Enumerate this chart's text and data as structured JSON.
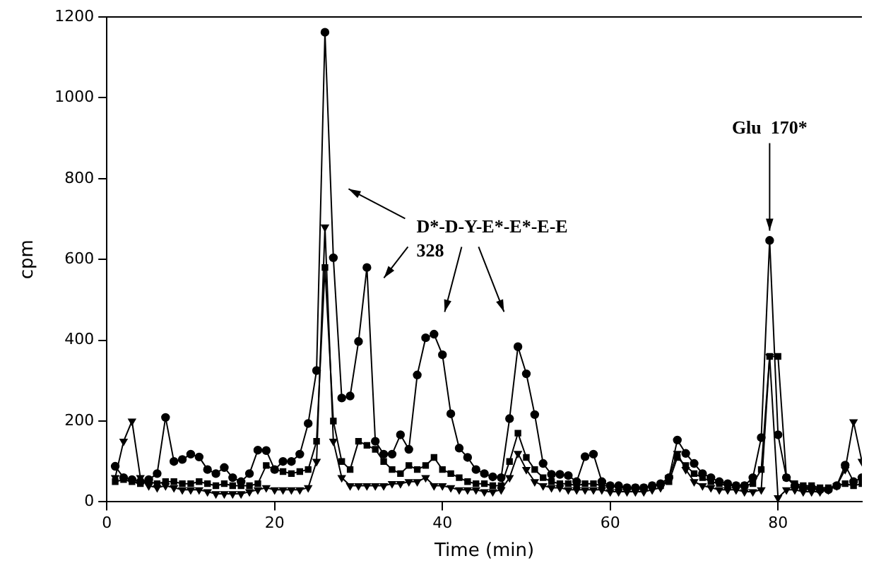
{
  "chart_data": {
    "type": "line",
    "xlabel": "Time (min)",
    "ylabel": "cpm",
    "xlim": [
      0,
      90
    ],
    "xticks": [
      0,
      20,
      40,
      60,
      80
    ],
    "ylim": [
      0,
      1200
    ],
    "yticks": [
      0,
      200,
      400,
      600,
      800,
      1000,
      1200
    ],
    "grid": false,
    "legend": false,
    "annotations": [
      "D*-D-Y-E*-E*-E-E\n328",
      {
        "text": "Glu  170*",
        "x": 79,
        "y": 650
      }
    ],
    "series": [
      {
        "color": "#000000",
        "marker": "circle",
        "x": [
          1,
          2,
          3,
          4,
          5,
          6,
          7,
          8,
          9,
          10,
          11,
          12,
          13,
          14,
          15,
          16,
          17,
          18,
          19,
          20,
          21,
          22,
          23,
          24,
          25,
          26,
          27,
          28,
          29,
          30,
          31,
          32,
          33,
          34,
          35,
          36,
          37,
          38,
          39,
          40,
          41,
          42,
          43,
          44,
          45,
          46,
          47,
          48,
          49,
          50,
          51,
          52,
          53,
          54,
          55,
          56,
          57,
          58,
          59,
          60,
          61,
          62,
          63,
          64,
          65,
          66,
          67,
          68,
          69,
          70,
          71,
          72,
          73,
          74,
          75,
          76,
          77,
          78,
          79,
          80,
          81,
          82,
          83,
          84,
          85,
          86,
          87,
          88,
          89,
          90
        ],
        "values": [
          88,
          60,
          55,
          50,
          55,
          70,
          209,
          100,
          105,
          118,
          111,
          80,
          70,
          85,
          60,
          50,
          70,
          128,
          127,
          80,
          100,
          100,
          118,
          194,
          325,
          1162,
          604,
          257,
          262,
          397,
          580,
          150,
          118,
          118,
          166,
          130,
          314,
          406,
          415,
          364,
          218,
          133,
          110,
          80,
          70,
          62,
          60,
          206,
          384,
          317,
          216,
          95,
          68,
          68,
          65,
          50,
          112,
          118,
          50,
          40,
          40,
          35,
          35,
          35,
          40,
          45,
          60,
          153,
          120,
          95,
          70,
          60,
          50,
          45,
          40,
          40,
          60,
          159,
          647,
          166,
          60,
          40,
          35,
          35,
          30,
          30,
          40,
          91,
          50,
          60
        ]
      },
      {
        "color": "#000000",
        "marker": "square",
        "x": [
          1,
          2,
          3,
          4,
          5,
          6,
          7,
          8,
          9,
          10,
          11,
          12,
          13,
          14,
          15,
          16,
          17,
          18,
          19,
          20,
          21,
          22,
          23,
          24,
          25,
          26,
          27,
          28,
          29,
          30,
          31,
          32,
          33,
          34,
          35,
          36,
          37,
          38,
          39,
          40,
          41,
          42,
          43,
          44,
          45,
          46,
          47,
          48,
          49,
          50,
          51,
          52,
          53,
          54,
          55,
          56,
          57,
          58,
          59,
          60,
          61,
          62,
          63,
          64,
          65,
          66,
          67,
          68,
          69,
          70,
          71,
          72,
          73,
          74,
          75,
          76,
          77,
          78,
          79,
          80,
          81,
          82,
          83,
          84,
          85,
          86,
          87,
          88,
          89,
          90
        ],
        "values": [
          50,
          55,
          50,
          45,
          50,
          45,
          50,
          50,
          45,
          45,
          50,
          45,
          40,
          45,
          40,
          40,
          40,
          45,
          90,
          80,
          75,
          70,
          75,
          80,
          150,
          580,
          200,
          100,
          80,
          150,
          140,
          130,
          100,
          80,
          70,
          90,
          80,
          90,
          110,
          80,
          70,
          60,
          50,
          45,
          45,
          40,
          40,
          100,
          170,
          110,
          80,
          60,
          50,
          45,
          45,
          40,
          45,
          45,
          40,
          40,
          35,
          35,
          35,
          35,
          40,
          40,
          50,
          110,
          90,
          70,
          60,
          50,
          45,
          40,
          40,
          40,
          45,
          80,
          360,
          360,
          60,
          45,
          40,
          40,
          35,
          35,
          40,
          45,
          40,
          45
        ]
      },
      {
        "color": "#000000",
        "marker": "triangle",
        "x": [
          1,
          2,
          3,
          4,
          5,
          6,
          7,
          8,
          9,
          10,
          11,
          12,
          13,
          14,
          15,
          16,
          17,
          18,
          19,
          20,
          21,
          22,
          23,
          24,
          25,
          26,
          27,
          28,
          29,
          30,
          31,
          32,
          33,
          34,
          35,
          36,
          37,
          38,
          39,
          40,
          41,
          42,
          43,
          44,
          45,
          46,
          47,
          48,
          49,
          50,
          51,
          52,
          53,
          54,
          55,
          56,
          57,
          58,
          59,
          60,
          61,
          62,
          63,
          64,
          65,
          66,
          67,
          68,
          69,
          70,
          71,
          72,
          73,
          74,
          75,
          76,
          77,
          78,
          79,
          80,
          81,
          82,
          83,
          84,
          85,
          86,
          87,
          88,
          89,
          90
        ],
        "values": [
          60,
          150,
          200,
          60,
          40,
          35,
          40,
          35,
          30,
          30,
          30,
          25,
          20,
          20,
          20,
          20,
          25,
          30,
          35,
          30,
          30,
          30,
          30,
          35,
          100,
          680,
          150,
          60,
          40,
          40,
          40,
          40,
          40,
          45,
          45,
          50,
          50,
          60,
          40,
          40,
          35,
          30,
          30,
          30,
          25,
          25,
          30,
          60,
          120,
          80,
          50,
          40,
          35,
          35,
          30,
          30,
          30,
          30,
          30,
          25,
          25,
          25,
          25,
          25,
          30,
          35,
          60,
          120,
          80,
          50,
          40,
          35,
          30,
          30,
          30,
          25,
          25,
          30,
          360,
          10,
          30,
          30,
          25,
          25,
          25,
          30,
          40,
          80,
          198,
          100
        ]
      }
    ]
  }
}
